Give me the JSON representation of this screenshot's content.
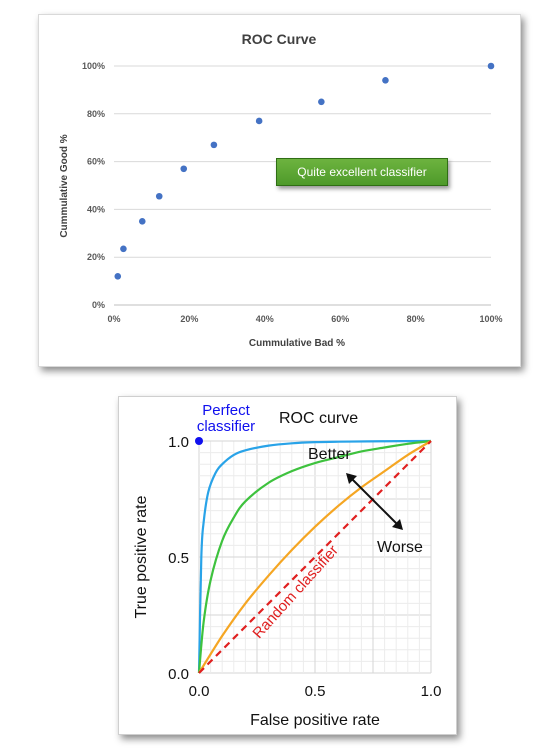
{
  "chart_data": [
    {
      "type": "scatter",
      "title": "ROC Curve",
      "xlabel": "Cummulative Bad %",
      "ylabel": "Cummulative Good %",
      "xlim": [
        0,
        100
      ],
      "ylim": [
        0,
        100
      ],
      "x_ticks": [
        "0%",
        "20%",
        "40%",
        "60%",
        "80%",
        "100%"
      ],
      "y_ticks": [
        "0%",
        "20%",
        "40%",
        "60%",
        "80%",
        "100%"
      ],
      "grid": "horizontal",
      "point_color": "#4472c4",
      "points": [
        {
          "x": 1,
          "y": 12
        },
        {
          "x": 2.5,
          "y": 23.5
        },
        {
          "x": 7.5,
          "y": 35
        },
        {
          "x": 12,
          "y": 45.5
        },
        {
          "x": 18.5,
          "y": 57
        },
        {
          "x": 26.5,
          "y": 67
        },
        {
          "x": 38.5,
          "y": 77
        },
        {
          "x": 55,
          "y": 85
        },
        {
          "x": 72,
          "y": 94
        },
        {
          "x": 100,
          "y": 100
        }
      ],
      "annotation": "Quite excellent classifier",
      "annotation_color": "#4e9a2a"
    },
    {
      "type": "line",
      "title": "ROC curve",
      "xlabel": "False positive rate",
      "ylabel": "True positive rate",
      "xlim": [
        0,
        1
      ],
      "ylim": [
        0,
        1
      ],
      "x_ticks": [
        "0.0",
        "0.5",
        "1.0"
      ],
      "y_ticks": [
        "0.0",
        "0.5",
        "1.0"
      ],
      "grid": "both",
      "series": [
        {
          "color": "#29a3e8",
          "x": [
            0,
            0.01,
            0.02,
            0.04,
            0.07,
            0.1,
            0.15,
            0.2,
            0.3,
            0.4,
            0.5,
            0.6,
            0.8,
            1.0
          ],
          "y": [
            0,
            0.5,
            0.65,
            0.78,
            0.86,
            0.9,
            0.94,
            0.96,
            0.98,
            0.99,
            0.995,
            0.997,
            0.999,
            1.0
          ]
        },
        {
          "color": "#3ec23e",
          "x": [
            0,
            0.02,
            0.05,
            0.1,
            0.15,
            0.2,
            0.3,
            0.4,
            0.5,
            0.6,
            0.7,
            0.8,
            0.9,
            1.0
          ],
          "y": [
            0,
            0.22,
            0.4,
            0.57,
            0.67,
            0.74,
            0.82,
            0.87,
            0.905,
            0.93,
            0.955,
            0.972,
            0.988,
            1.0
          ]
        },
        {
          "color": "#f5a623",
          "x": [
            0,
            0.1,
            0.2,
            0.3,
            0.4,
            0.5,
            0.6,
            0.7,
            0.8,
            0.9,
            1.0
          ],
          "y": [
            0,
            0.16,
            0.3,
            0.42,
            0.53,
            0.63,
            0.72,
            0.8,
            0.87,
            0.94,
            1.0
          ]
        },
        {
          "label": "Random classifier",
          "color": "#e02020",
          "dashed": true,
          "x": [
            0,
            1
          ],
          "y": [
            0,
            1
          ]
        }
      ],
      "perfect_point": {
        "label_line1": "Perfect",
        "label_line2": "classifier",
        "x": 0,
        "y": 1,
        "color": "#1010ee"
      },
      "annotations": {
        "better": "Better",
        "worse": "Worse"
      }
    }
  ]
}
